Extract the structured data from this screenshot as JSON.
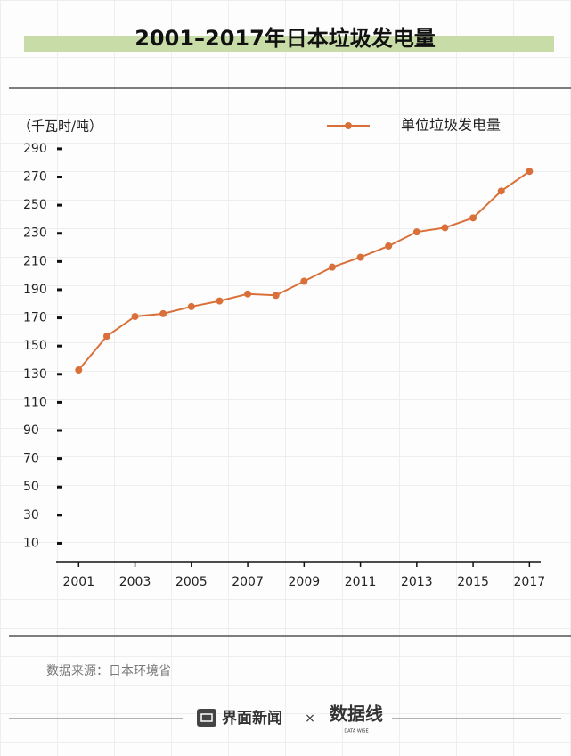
{
  "chart_data": {
    "type": "line",
    "title": "2001–2017年日本垃圾发电量",
    "y_label": "（千瓦时/吨）",
    "x": [
      2001,
      2002,
      2003,
      2004,
      2005,
      2006,
      2007,
      2008,
      2009,
      2010,
      2011,
      2012,
      2013,
      2014,
      2015,
      2016,
      2017
    ],
    "series": [
      {
        "name": "单位垃圾发电量",
        "color": "#d9703a",
        "values": [
          133,
          157,
          171,
          173,
          178,
          182,
          187,
          186,
          196,
          206,
          213,
          221,
          231,
          234,
          241,
          260,
          274
        ]
      }
    ],
    "xlim": [
      2000.2,
      2017.4
    ],
    "xticks": [
      2001,
      2003,
      2005,
      2007,
      2009,
      2011,
      2013,
      2015,
      2017
    ],
    "ylim": [
      -3,
      295
    ],
    "yticks": [
      10,
      30,
      50,
      70,
      90,
      110,
      130,
      150,
      170,
      190,
      210,
      230,
      250,
      270,
      290
    ],
    "legend": "top-right",
    "source": "数据来源：日本环境省"
  },
  "footer": {
    "brand": "界面新闻",
    "separator": "×",
    "partner": "数据线",
    "partner_sub": "DATA WISE"
  }
}
